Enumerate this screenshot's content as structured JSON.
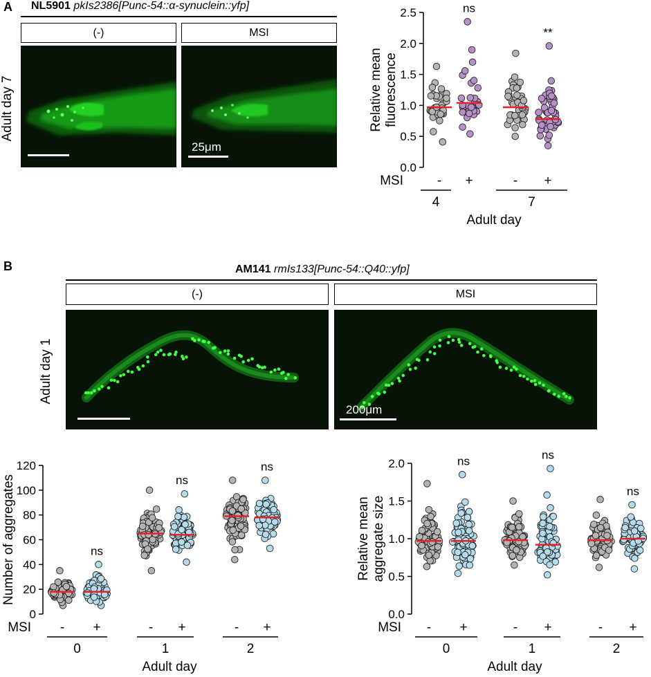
{
  "panel_a": {
    "label": "A",
    "strain_name": "NL5901",
    "strain_genotype": "pkIs2386[Punc-54::α-synuclein::yfp]",
    "condition_neg": "(-)",
    "condition_msi": "MSI",
    "row_label": "Adult day 7",
    "scale_text": "25μm"
  },
  "panel_b": {
    "label": "B",
    "strain_name": "AM141",
    "strain_genotype": "rmIs133[Punc-54::Q40::yfp]",
    "condition_neg": "(-)",
    "condition_msi": "MSI",
    "row_label": "Adult day 1",
    "scale_text": "200μm"
  },
  "colors": {
    "control_point": "#b4b4b4",
    "msi_purple": "#b890c8",
    "msi_blue": "#b4dcec",
    "median_line": "#e8202a",
    "fluor_green": "#22e022",
    "micro_bg": "#061306"
  },
  "chart_data": [
    {
      "id": "chartA",
      "type": "scatter",
      "ylabel": "Relative mean fluorescence",
      "xlabel": "Adult day",
      "ylim": [
        0,
        2.5
      ],
      "yticks": [
        "0.0",
        "0.5",
        "1.0",
        "1.5",
        "2.0",
        "2.5"
      ],
      "msi_row_label": "MSI",
      "groups": [
        {
          "day": "4",
          "treatments": [
            {
              "label": "-",
              "color": "control",
              "median": 0.97,
              "min": 0.41,
              "max": 1.63,
              "n": 34,
              "sig": ""
            },
            {
              "label": "+",
              "color": "purple",
              "median": 1.04,
              "min": 0.54,
              "max": 2.35,
              "n": 30,
              "sig": "ns"
            }
          ]
        },
        {
          "day": "7",
          "treatments": [
            {
              "label": "-",
              "color": "control",
              "median": 0.97,
              "min": 0.5,
              "max": 1.84,
              "n": 40,
              "sig": ""
            },
            {
              "label": "+",
              "color": "purple",
              "median": 0.78,
              "min": 0.35,
              "max": 1.96,
              "n": 50,
              "sig": "**"
            }
          ]
        }
      ]
    },
    {
      "id": "chartB1",
      "type": "scatter",
      "ylabel": "Number of aggregates",
      "xlabel": "Adult day",
      "ylim": [
        0,
        120
      ],
      "yticks": [
        "0",
        "20",
        "40",
        "60",
        "80",
        "100",
        "120"
      ],
      "msi_row_label": "MSI",
      "groups": [
        {
          "day": "0",
          "treatments": [
            {
              "label": "-",
              "color": "control",
              "median": 18,
              "min": 7,
              "max": 35,
              "n": 70,
              "sig": ""
            },
            {
              "label": "+",
              "color": "blue",
              "median": 18,
              "min": 7,
              "max": 40,
              "n": 70,
              "sig": "ns"
            }
          ]
        },
        {
          "day": "1",
          "treatments": [
            {
              "label": "-",
              "color": "control",
              "median": 65,
              "min": 35,
              "max": 100,
              "n": 85,
              "sig": ""
            },
            {
              "label": "+",
              "color": "blue",
              "median": 64,
              "min": 42,
              "max": 97,
              "n": 85,
              "sig": "ns"
            }
          ]
        },
        {
          "day": "2",
          "treatments": [
            {
              "label": "-",
              "color": "control",
              "median": 79,
              "min": 44,
              "max": 108,
              "n": 95,
              "sig": ""
            },
            {
              "label": "+",
              "color": "blue",
              "median": 78,
              "min": 53,
              "max": 108,
              "n": 95,
              "sig": "ns"
            }
          ]
        }
      ]
    },
    {
      "id": "chartB2",
      "type": "scatter",
      "ylabel": "Relative mean aggregate size",
      "xlabel": "Adult day",
      "ylim": [
        0,
        2.0
      ],
      "yticks": [
        "0.0",
        "0.5",
        "1.0",
        "1.5",
        "2.0"
      ],
      "msi_row_label": "MSI",
      "groups": [
        {
          "day": "0",
          "treatments": [
            {
              "label": "-",
              "color": "control",
              "median": 0.97,
              "min": 0.63,
              "max": 1.73,
              "n": 85,
              "sig": ""
            },
            {
              "label": "+",
              "color": "blue",
              "median": 0.97,
              "min": 0.54,
              "max": 1.85,
              "n": 85,
              "sig": "ns"
            }
          ]
        },
        {
          "day": "1",
          "treatments": [
            {
              "label": "-",
              "color": "control",
              "median": 0.98,
              "min": 0.65,
              "max": 1.5,
              "n": 85,
              "sig": ""
            },
            {
              "label": "+",
              "color": "blue",
              "median": 0.92,
              "min": 0.52,
              "max": 1.93,
              "n": 85,
              "sig": "ns"
            }
          ]
        },
        {
          "day": "2",
          "treatments": [
            {
              "label": "-",
              "color": "control",
              "median": 0.98,
              "min": 0.62,
              "max": 1.52,
              "n": 85,
              "sig": ""
            },
            {
              "label": "+",
              "color": "blue",
              "median": 1.0,
              "min": 0.6,
              "max": 1.45,
              "n": 85,
              "sig": "ns"
            }
          ]
        }
      ]
    }
  ]
}
